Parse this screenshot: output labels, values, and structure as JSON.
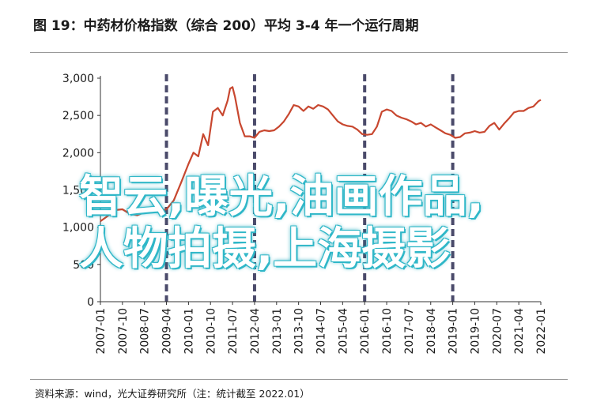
{
  "header": {
    "title": "图 19：中药材价格指数（综合 200）平均 3-4 年一个运行周期"
  },
  "footer": {
    "source": "资料来源：wind，光大证券研究所（注：统计截至 2022.01）"
  },
  "watermark": {
    "line1": "智云,曝光,油画作品,",
    "line2": "人物拍摄,上海摄影"
  },
  "colors": {
    "line": "#c8472f",
    "cycle_marker": "#4a4a6a",
    "axis": "#333333"
  },
  "chart_data": {
    "type": "line",
    "title": "",
    "xlabel": "",
    "ylabel": "",
    "ylim": [
      0,
      3000
    ],
    "yticks": [
      0,
      500,
      1000,
      1500,
      2000,
      2500,
      3000
    ],
    "ytick_labels": [
      "0",
      "500",
      "1,000",
      "1,500",
      "2,000",
      "2,500",
      "3,000"
    ],
    "xlim": [
      "2007-01",
      "2022-01"
    ],
    "xtick_labels": [
      "2007-01",
      "2007-10",
      "2008-07",
      "2009-04",
      "2010-01",
      "2010-10",
      "2011-07",
      "2012-04",
      "2013-01",
      "2013-10",
      "2014-07",
      "2015-04",
      "2016-01",
      "2016-10",
      "2017-07",
      "2018-04",
      "2019-01",
      "2019-10",
      "2020-07",
      "2021-04",
      "2022-01"
    ],
    "cycle_markers": [
      "2009-04",
      "2012-04",
      "2016-01",
      "2019-01"
    ],
    "grid": false,
    "series": [
      {
        "name": "",
        "points": [
          [
            "2007-01",
            1080
          ],
          [
            "2007-04",
            1150
          ],
          [
            "2007-07",
            1230
          ],
          [
            "2007-10",
            1240
          ],
          [
            "2008-01",
            1180
          ],
          [
            "2008-04",
            1160
          ],
          [
            "2008-07",
            1200
          ],
          [
            "2008-10",
            1230
          ],
          [
            "2009-01",
            1220
          ],
          [
            "2009-04",
            1240
          ],
          [
            "2009-07",
            1360
          ],
          [
            "2009-10",
            1600
          ],
          [
            "2010-01",
            1850
          ],
          [
            "2010-03",
            2000
          ],
          [
            "2010-05",
            1950
          ],
          [
            "2010-07",
            2250
          ],
          [
            "2010-09",
            2100
          ],
          [
            "2010-11",
            2550
          ],
          [
            "2011-01",
            2600
          ],
          [
            "2011-03",
            2500
          ],
          [
            "2011-05",
            2700
          ],
          [
            "2011-06",
            2860
          ],
          [
            "2011-07",
            2880
          ],
          [
            "2011-08",
            2750
          ],
          [
            "2011-10",
            2400
          ],
          [
            "2011-12",
            2220
          ],
          [
            "2012-02",
            2220
          ],
          [
            "2012-04",
            2200
          ],
          [
            "2012-06",
            2280
          ],
          [
            "2012-08",
            2300
          ],
          [
            "2012-10",
            2290
          ],
          [
            "2012-12",
            2300
          ],
          [
            "2013-02",
            2350
          ],
          [
            "2013-04",
            2420
          ],
          [
            "2013-06",
            2520
          ],
          [
            "2013-08",
            2640
          ],
          [
            "2013-10",
            2620
          ],
          [
            "2013-12",
            2560
          ],
          [
            "2014-02",
            2620
          ],
          [
            "2014-04",
            2590
          ],
          [
            "2014-06",
            2640
          ],
          [
            "2014-08",
            2620
          ],
          [
            "2014-10",
            2580
          ],
          [
            "2014-12",
            2500
          ],
          [
            "2015-02",
            2420
          ],
          [
            "2015-04",
            2380
          ],
          [
            "2015-06",
            2360
          ],
          [
            "2015-08",
            2350
          ],
          [
            "2015-10",
            2310
          ],
          [
            "2015-12",
            2250
          ],
          [
            "2016-02",
            2240
          ],
          [
            "2016-04",
            2250
          ],
          [
            "2016-06",
            2350
          ],
          [
            "2016-08",
            2550
          ],
          [
            "2016-10",
            2580
          ],
          [
            "2016-12",
            2560
          ],
          [
            "2017-02",
            2500
          ],
          [
            "2017-04",
            2470
          ],
          [
            "2017-06",
            2450
          ],
          [
            "2017-08",
            2420
          ],
          [
            "2017-10",
            2380
          ],
          [
            "2017-12",
            2400
          ],
          [
            "2018-02",
            2350
          ],
          [
            "2018-04",
            2380
          ],
          [
            "2018-06",
            2340
          ],
          [
            "2018-08",
            2300
          ],
          [
            "2018-10",
            2260
          ],
          [
            "2018-12",
            2240
          ],
          [
            "2019-02",
            2200
          ],
          [
            "2019-04",
            2210
          ],
          [
            "2019-06",
            2260
          ],
          [
            "2019-08",
            2270
          ],
          [
            "2019-10",
            2290
          ],
          [
            "2019-12",
            2270
          ],
          [
            "2020-02",
            2280
          ],
          [
            "2020-04",
            2360
          ],
          [
            "2020-06",
            2400
          ],
          [
            "2020-08",
            2310
          ],
          [
            "2020-10",
            2390
          ],
          [
            "2020-12",
            2460
          ],
          [
            "2021-02",
            2540
          ],
          [
            "2021-04",
            2560
          ],
          [
            "2021-06",
            2560
          ],
          [
            "2021-08",
            2600
          ],
          [
            "2021-10",
            2620
          ],
          [
            "2021-12",
            2690
          ],
          [
            "2022-01",
            2710
          ]
        ]
      }
    ]
  }
}
